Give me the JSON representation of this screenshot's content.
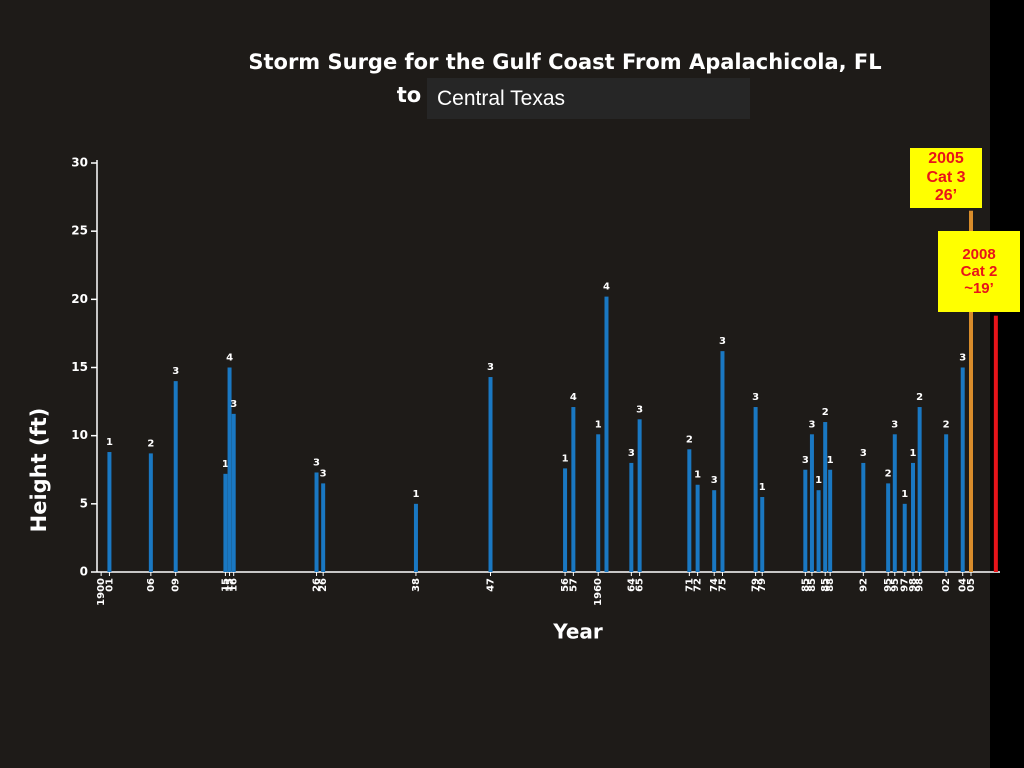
{
  "chart_data": {
    "type": "bar",
    "title": "Storm Surge for the Gulf Coast From Apalachicola, FL",
    "subtitle_prefix": "to",
    "subtitle_region": "Central Texas",
    "y_label": "Height (ft)",
    "x_label": "Year",
    "color": "#1a78c2",
    "x": [
      1901,
      1906,
      1909,
      1915,
      1915.5,
      1916,
      1926,
      1926.8,
      1938,
      1947,
      1956,
      1957,
      1960,
      1961,
      1964,
      1965,
      1971,
      1972,
      1974,
      1975,
      1979,
      1979.8,
      1985,
      1985.8,
      1986.6,
      1987.4,
      1988,
      1992,
      1995,
      1995.8,
      1997,
      1998,
      1998.8,
      2002,
      2004
    ],
    "values": [
      8.8,
      8.7,
      14.0,
      7.2,
      15.0,
      11.6,
      7.3,
      6.5,
      5.0,
      14.3,
      7.6,
      12.1,
      10.1,
      20.2,
      8.0,
      11.2,
      9.0,
      6.4,
      6.0,
      16.2,
      12.1,
      5.5,
      7.5,
      10.1,
      6.0,
      11.0,
      7.5,
      8.0,
      6.5,
      10.1,
      5.0,
      8.0,
      12.1,
      10.1,
      15.0
    ],
    "hurricane_category": [
      1,
      2,
      3,
      1,
      4,
      3,
      3,
      3,
      1,
      3,
      1,
      4,
      1,
      4,
      3,
      3,
      2,
      1,
      3,
      3,
      3,
      1,
      3,
      3,
      1,
      2,
      1,
      3,
      2,
      3,
      1,
      1,
      2,
      2,
      3
    ],
    "highlights": [
      {
        "x": 2005,
        "value": 26.5,
        "color": "#d98c2b",
        "note": [
          "2005",
          "Cat 3",
          "26’"
        ]
      },
      {
        "x": 2008,
        "value": 18.8,
        "color": "#e8141a",
        "note": [
          "2008",
          "Cat 2",
          "~19’"
        ]
      }
    ],
    "xlim": [
      1899.5,
      2008.5
    ],
    "xticks": [
      {
        "value": 1900,
        "label": "1900"
      },
      {
        "value": 1901,
        "label": "01"
      },
      {
        "value": 1906,
        "label": "06"
      },
      {
        "value": 1909,
        "label": "09"
      },
      {
        "value": 1915,
        "label": "15"
      },
      {
        "value": 1915.5,
        "label": "15"
      },
      {
        "value": 1916,
        "label": "16"
      },
      {
        "value": 1926,
        "label": "26"
      },
      {
        "value": 1926.8,
        "label": "26"
      },
      {
        "value": 1938,
        "label": "38"
      },
      {
        "value": 1947,
        "label": "47"
      },
      {
        "value": 1956,
        "label": "56"
      },
      {
        "value": 1957,
        "label": "57"
      },
      {
        "value": 1960,
        "label": "1960"
      },
      {
        "value": 1964,
        "label": "64"
      },
      {
        "value": 1965,
        "label": "65"
      },
      {
        "value": 1971,
        "label": "71"
      },
      {
        "value": 1972,
        "label": "72"
      },
      {
        "value": 1974,
        "label": "74"
      },
      {
        "value": 1975,
        "label": "75"
      },
      {
        "value": 1979,
        "label": "79"
      },
      {
        "value": 1979.8,
        "label": "79"
      },
      {
        "value": 1985,
        "label": "85"
      },
      {
        "value": 1985.8,
        "label": "85"
      },
      {
        "value": 1987.4,
        "label": "85"
      },
      {
        "value": 1988,
        "label": "88"
      },
      {
        "value": 1992,
        "label": "92"
      },
      {
        "value": 1995,
        "label": "95"
      },
      {
        "value": 1995.8,
        "label": "95"
      },
      {
        "value": 1997,
        "label": "97"
      },
      {
        "value": 1998,
        "label": "98"
      },
      {
        "value": 1998.8,
        "label": "98"
      },
      {
        "value": 2002,
        "label": "02"
      },
      {
        "value": 2004,
        "label": "04"
      },
      {
        "value": 2005,
        "label": "05"
      }
    ],
    "ylim": [
      0,
      30
    ],
    "yticks": [
      0,
      5,
      10,
      15,
      20,
      25,
      30
    ]
  }
}
